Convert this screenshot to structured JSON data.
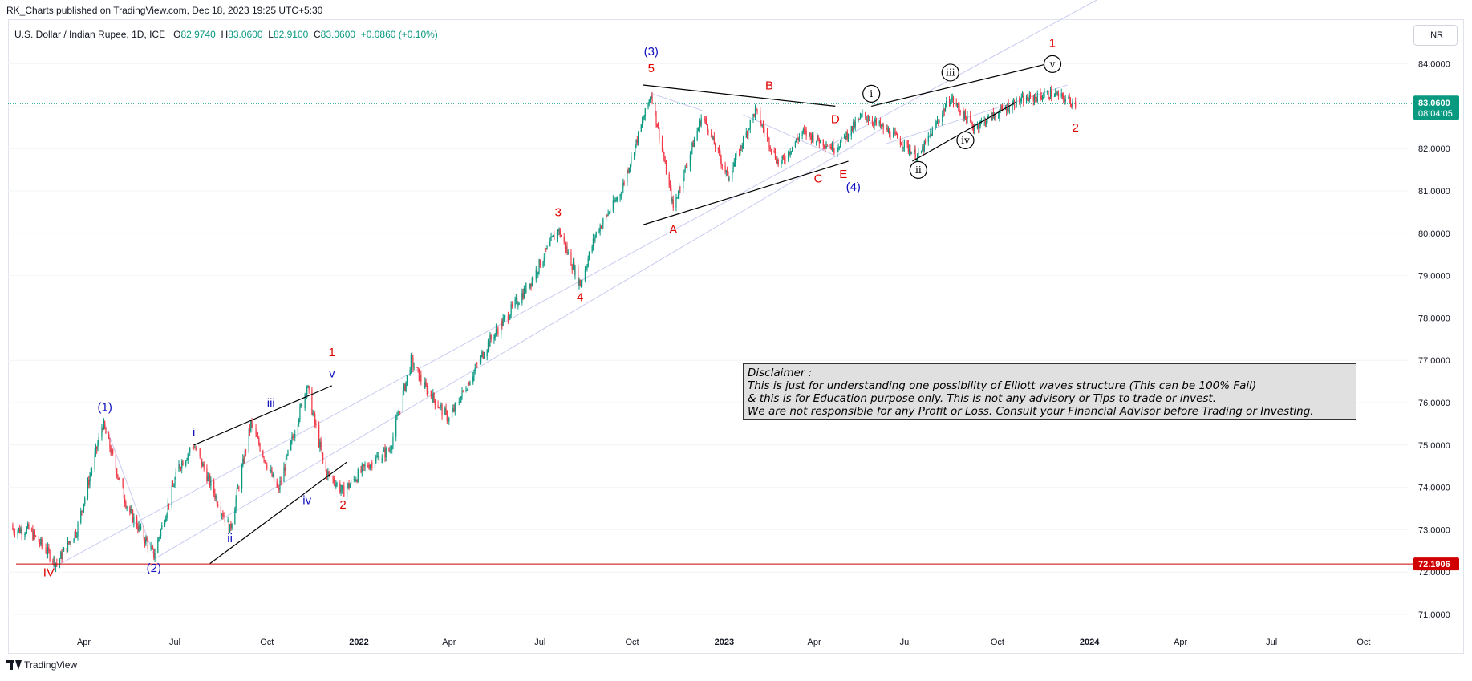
{
  "header": {
    "publish_text": "RK_Charts published on TradingView.com, Dec 18, 2023 19:25 UTC+5:30"
  },
  "symbol": {
    "name": "U.S. Dollar / Indian Rupee, 1D, ICE",
    "open_label": "O",
    "open": "82.9740",
    "high_label": "H",
    "high": "83.0600",
    "low_label": "L",
    "low": "82.9100",
    "close_label": "C",
    "close": "83.0600",
    "change": "+0.0860 (+0.10%)"
  },
  "currency_button": "INR",
  "price_badge": {
    "price": "83.0600",
    "countdown": "08:04:05"
  },
  "support_badge": "72.1906",
  "footer": {
    "brand": "TradingView"
  },
  "disclaimer": {
    "lines": [
      "Disclaimer :",
      "This is just for understanding one possibility of Elliott waves structure (This can be 100% Fail)",
      "& this is for Education purpose only. This is not any advisory or Tips to trade or invest.",
      "We are not responsible for any Profit or Loss. Consult your Financial Advisor before Trading or Investing."
    ]
  },
  "colors": {
    "up": "#089981",
    "down": "#f23645",
    "support_line": "#d00000",
    "wave_red": "#e00000",
    "wave_blue": "#1010c0",
    "trendline": "#000000",
    "fan_line": "#c8cbf0"
  },
  "chart_data": {
    "type": "candlestick",
    "title": "U.S. Dollar / Indian Rupee, 1D, ICE",
    "ylim": [
      70.6,
      84.6
    ],
    "y_ticks": [
      "71.0000",
      "72.0000",
      "73.0000",
      "74.0000",
      "75.0000",
      "76.0000",
      "77.0000",
      "78.0000",
      "79.0000",
      "80.0000",
      "81.0000",
      "82.0000",
      "83.0000",
      "84.0000"
    ],
    "x_ticks": [
      "Apr",
      "Jul",
      "Oct",
      "2022",
      "Apr",
      "Jul",
      "Oct",
      "2023",
      "Apr",
      "Jul",
      "Oct",
      "2024",
      "Apr",
      "Jul",
      "Oct"
    ],
    "x_range": [
      "2021-01-20",
      "2024-12-31"
    ],
    "last_price": 83.06,
    "horizontal_line": 72.1906,
    "series": [
      {
        "name": "USDINR",
        "x": [
          "2021-02-05",
          "2021-03-05",
          "2021-03-25",
          "2021-04-20",
          "2021-05-15",
          "2021-06-10",
          "2021-07-05",
          "2021-07-20",
          "2021-08-25",
          "2021-09-15",
          "2021-10-12",
          "2021-11-10",
          "2021-11-28",
          "2021-12-16",
          "2022-01-08",
          "2022-02-01",
          "2022-02-22",
          "2022-03-07",
          "2022-04-01",
          "2022-05-10",
          "2022-06-20",
          "2022-07-19",
          "2022-08-10",
          "2022-08-26",
          "2022-09-20",
          "2022-10-20",
          "2022-11-11",
          "2022-12-10",
          "2023-01-05",
          "2023-02-01",
          "2023-02-25",
          "2023-03-20",
          "2023-04-22",
          "2023-05-20",
          "2023-06-20",
          "2023-07-14",
          "2023-08-15",
          "2023-09-07",
          "2023-10-20",
          "2023-11-25",
          "2023-12-18"
        ],
        "values": [
          73.0,
          72.2,
          73.0,
          75.5,
          73.5,
          72.4,
          74.5,
          75.0,
          73.0,
          75.5,
          73.9,
          76.4,
          74.4,
          73.9,
          74.5,
          74.9,
          77.0,
          76.4,
          75.6,
          77.4,
          78.8,
          80.1,
          78.8,
          80.0,
          81.0,
          83.3,
          80.6,
          82.8,
          81.3,
          82.9,
          81.6,
          82.4,
          82.0,
          82.8,
          82.3,
          81.8,
          83.2,
          82.5,
          83.1,
          83.3,
          83.06
        ]
      }
    ],
    "annotations": [
      {
        "label": "IV",
        "x": "2021-02-25",
        "y": 71.9,
        "color": "red"
      },
      {
        "label": "(1)",
        "x": "2021-04-22",
        "y": 75.8,
        "color": "blue"
      },
      {
        "label": "(2)",
        "x": "2021-06-10",
        "y": 72.0,
        "color": "blue"
      },
      {
        "label": "i",
        "x": "2021-07-20",
        "y": 75.2,
        "color": "blue"
      },
      {
        "label": "ii",
        "x": "2021-08-25",
        "y": 72.7,
        "color": "blue"
      },
      {
        "label": "iii",
        "x": "2021-10-05",
        "y": 75.9,
        "color": "blue"
      },
      {
        "label": "iv",
        "x": "2021-11-10",
        "y": 73.6,
        "color": "blue"
      },
      {
        "label": "v",
        "x": "2021-12-05",
        "y": 76.6,
        "color": "blue"
      },
      {
        "label": "1",
        "x": "2021-12-05",
        "y": 77.1,
        "color": "red"
      },
      {
        "label": "2",
        "x": "2021-12-16",
        "y": 73.5,
        "color": "red"
      },
      {
        "label": "3",
        "x": "2022-07-19",
        "y": 80.4,
        "color": "red"
      },
      {
        "label": "4",
        "x": "2022-08-10",
        "y": 78.4,
        "color": "red"
      },
      {
        "label": "(3)",
        "x": "2022-10-20",
        "y": 84.2,
        "color": "blue"
      },
      {
        "label": "5",
        "x": "2022-10-20",
        "y": 83.8,
        "color": "red"
      },
      {
        "label": "A",
        "x": "2022-11-11",
        "y": 80.0,
        "color": "red"
      },
      {
        "label": "B",
        "x": "2023-02-15",
        "y": 83.4,
        "color": "red"
      },
      {
        "label": "C",
        "x": "2023-04-05",
        "y": 81.2,
        "color": "red"
      },
      {
        "label": "D",
        "x": "2023-04-22",
        "y": 82.6,
        "color": "red"
      },
      {
        "label": "E",
        "x": "2023-04-30",
        "y": 81.3,
        "color": "red"
      },
      {
        "label": "(4)",
        "x": "2023-05-10",
        "y": 81.0,
        "color": "blue"
      },
      {
        "label": "i",
        "x": "2023-05-28",
        "y": 83.2,
        "color": "black",
        "circled": true
      },
      {
        "label": "ii",
        "x": "2023-07-14",
        "y": 81.4,
        "color": "black",
        "circled": true
      },
      {
        "label": "iii",
        "x": "2023-08-15",
        "y": 83.7,
        "color": "black",
        "circled": true
      },
      {
        "label": "iv",
        "x": "2023-08-30",
        "y": 82.1,
        "color": "black",
        "circled": true
      },
      {
        "label": "v",
        "x": "2023-11-25",
        "y": 83.9,
        "color": "black",
        "circled": true
      },
      {
        "label": "1",
        "x": "2023-11-25",
        "y": 84.4,
        "color": "red"
      },
      {
        "label": "2",
        "x": "2023-12-18",
        "y": 82.4,
        "color": "red"
      }
    ]
  }
}
